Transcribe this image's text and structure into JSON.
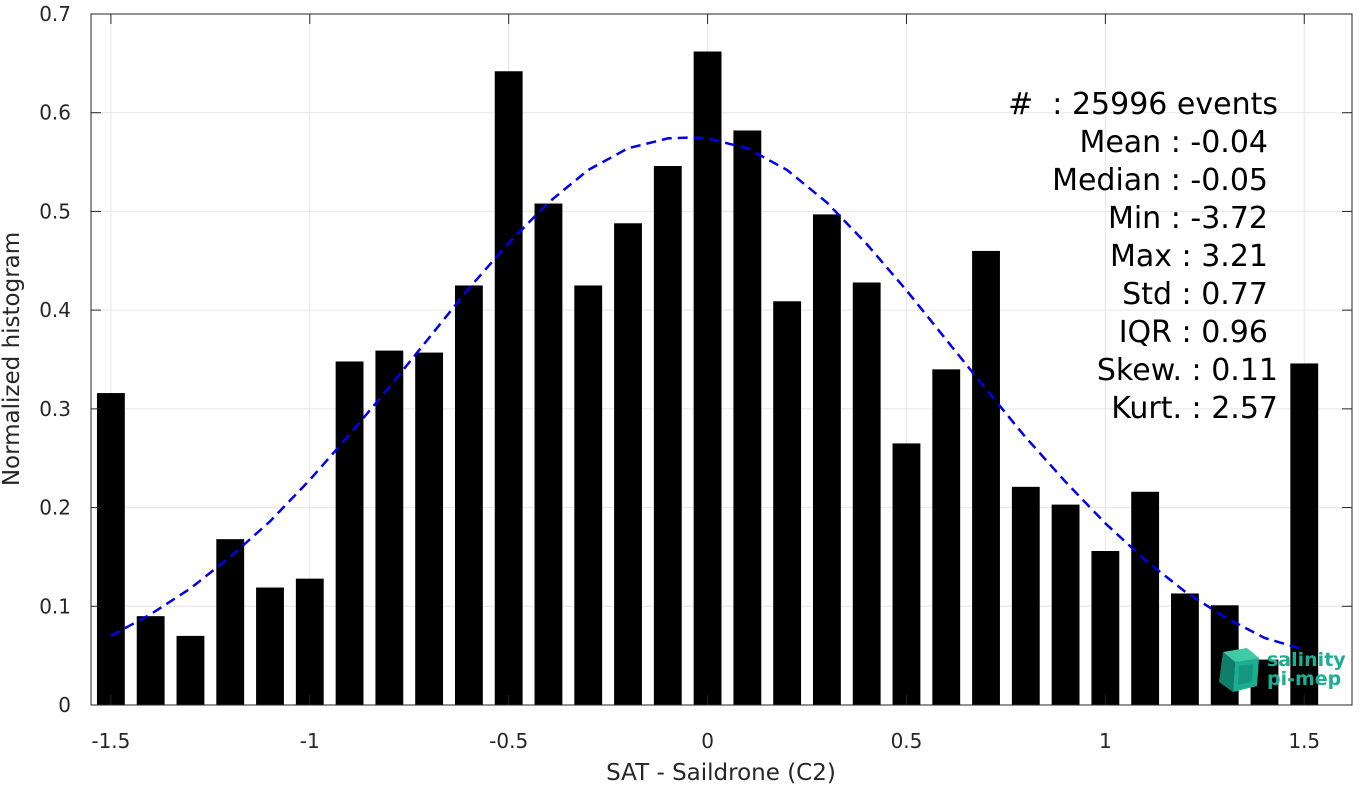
{
  "chart_data": {
    "type": "bar",
    "xlabel": "SAT - Saildrone (C2)",
    "ylabel": "Normalized histogram",
    "xlim": [
      -1.55,
      1.62
    ],
    "ylim": [
      0,
      0.7
    ],
    "xticks": [
      -1.5,
      -1,
      -0.5,
      0,
      0.5,
      1,
      1.5
    ],
    "xtick_labels": [
      "-1.5",
      "-1",
      "-0.5",
      "0",
      "0.5",
      "1",
      "1.5"
    ],
    "yticks": [
      0,
      0.1,
      0.2,
      0.3,
      0.4,
      0.5,
      0.6,
      0.7
    ],
    "ytick_labels": [
      "0",
      "0.1",
      "0.2",
      "0.3",
      "0.4",
      "0.5",
      "0.6",
      "0.7"
    ],
    "grid": true,
    "bar_color": "#000000",
    "curve_color": "#0000ee",
    "bars": {
      "x": [
        -1.5,
        -1.4,
        -1.3,
        -1.2,
        -1.1,
        -1.0,
        -0.9,
        -0.8,
        -0.7,
        -0.6,
        -0.5,
        -0.4,
        -0.3,
        -0.2,
        -0.1,
        0.0,
        0.1,
        0.2,
        0.3,
        0.4,
        0.5,
        0.6,
        0.7,
        0.8,
        0.9,
        1.0,
        1.1,
        1.2,
        1.3,
        1.4,
        1.5
      ],
      "values": [
        0.316,
        0.09,
        0.07,
        0.168,
        0.119,
        0.128,
        0.348,
        0.359,
        0.357,
        0.425,
        0.642,
        0.508,
        0.425,
        0.488,
        0.546,
        0.662,
        0.582,
        0.409,
        0.497,
        0.428,
        0.265,
        0.34,
        0.46,
        0.221,
        0.203,
        0.156,
        0.216,
        0.113,
        0.101,
        0.046,
        0.346
      ]
    },
    "fit_curve": {
      "style": "dashed",
      "x": [
        -1.5,
        -1.4,
        -1.3,
        -1.2,
        -1.1,
        -1.0,
        -0.9,
        -0.8,
        -0.7,
        -0.6,
        -0.5,
        -0.4,
        -0.3,
        -0.2,
        -0.1,
        -0.04,
        0.0,
        0.1,
        0.2,
        0.3,
        0.4,
        0.5,
        0.6,
        0.7,
        0.8,
        0.9,
        1.0,
        1.1,
        1.2,
        1.3,
        1.4,
        1.5
      ],
      "y": [
        0.07,
        0.092,
        0.118,
        0.15,
        0.186,
        0.228,
        0.274,
        0.322,
        0.372,
        0.422,
        0.468,
        0.509,
        0.542,
        0.564,
        0.574,
        0.575,
        0.574,
        0.564,
        0.542,
        0.509,
        0.467,
        0.42,
        0.37,
        0.32,
        0.271,
        0.226,
        0.184,
        0.147,
        0.115,
        0.089,
        0.068,
        0.056
      ]
    },
    "annotations": [
      "#  : 25996 events",
      "Mean : -0.04",
      "Median : -0.05",
      "Min : -3.72",
      "Max : 3.21",
      "Std : 0.77",
      "IQR : 0.96",
      "Skew. : 0.11",
      "Kurt. : 2.57"
    ]
  },
  "logo": {
    "line1": "salinity",
    "line2": "pi-mep",
    "color": "#1cae92"
  }
}
